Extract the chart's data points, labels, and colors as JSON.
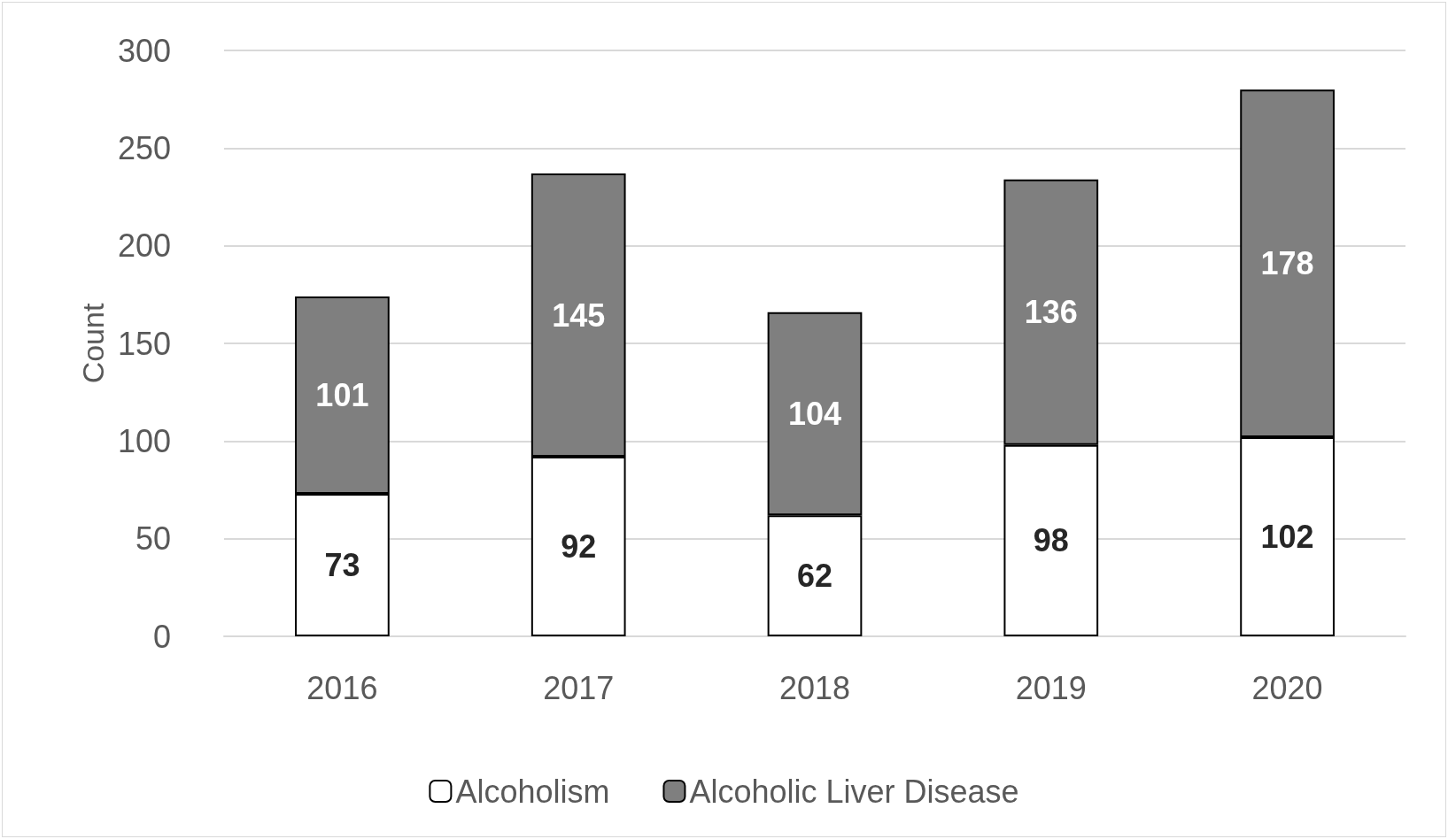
{
  "chart_data": {
    "type": "bar",
    "stacked": true,
    "ylabel": "Count",
    "categories": [
      "2016",
      "2017",
      "2018",
      "2019",
      "2020"
    ],
    "series": [
      {
        "name": "Alcoholism",
        "color": "#ffffff",
        "values": [
          73,
          92,
          62,
          98,
          102
        ]
      },
      {
        "name": "Alcoholic Liver Disease",
        "color": "#7f7f7f",
        "values": [
          101,
          145,
          104,
          136,
          178
        ]
      }
    ],
    "ylim": [
      0,
      300
    ],
    "yticks": [
      0,
      50,
      100,
      150,
      200,
      250,
      300
    ],
    "grid": "y",
    "legend": "bottom",
    "data_labels": true
  }
}
